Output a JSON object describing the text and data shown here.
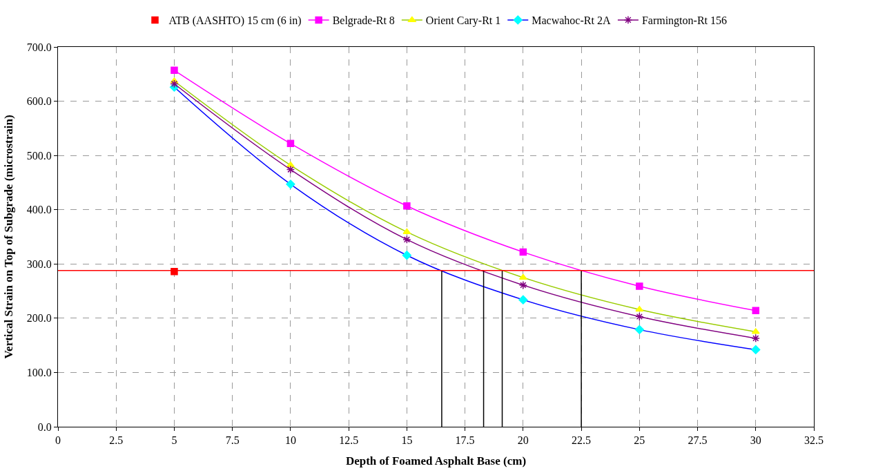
{
  "chart_data": {
    "type": "line",
    "xlabel": "Depth of Foamed Asphalt Base (cm)",
    "ylabel": "Vertical Strain on Top of Subgrade (microstrain)",
    "xlim": [
      0,
      32.5
    ],
    "xticks": [
      0,
      2.5,
      5,
      7.5,
      10,
      12.5,
      15,
      17.5,
      20,
      22.5,
      25,
      27.5,
      30,
      32.5
    ],
    "ylim": [
      0,
      700
    ],
    "yticks": [
      {
        "value": 0,
        "label": "0.0"
      },
      {
        "value": 100,
        "label": "100.0"
      },
      {
        "value": 200,
        "label": "200.0"
      },
      {
        "value": 300,
        "label": "300.0"
      },
      {
        "value": 400,
        "label": "400.0"
      },
      {
        "value": 500,
        "label": "500.0"
      },
      {
        "value": 600,
        "label": "600.0"
      },
      {
        "value": 700,
        "label": "700.0"
      }
    ],
    "grid": true,
    "legend": "top",
    "line_style": "solid",
    "ref_lines": [
      {
        "axis": "y",
        "value": 288,
        "color": "#ff0000",
        "line_style": "solid"
      }
    ],
    "series": [
      {
        "name": "ATB (AASHTO) 15 cm (6 in)",
        "type": "scatter",
        "color": "#ff0000",
        "marker": "square",
        "x": [
          5
        ],
        "values": [
          286
        ]
      },
      {
        "name": "Belgrade-Rt 8",
        "color": "#ff00ff",
        "marker": "square",
        "x": [
          5,
          10,
          15,
          20,
          25,
          30
        ],
        "values": [
          657,
          522,
          407,
          322,
          259,
          214
        ]
      },
      {
        "name": "Orient Cary-Rt 1",
        "color": "#99cc00",
        "colors": [
          "#ffff00",
          "#ffff00",
          "#ffff00",
          "#ffff00",
          "#ffff00",
          "#ffff00"
        ],
        "marker": "triangle",
        "x": [
          5,
          10,
          15,
          20,
          25,
          30
        ],
        "values": [
          637,
          482,
          359,
          275,
          216,
          175
        ]
      },
      {
        "name": "Macwahoc-Rt 2A",
        "color": "#0000ff",
        "colors": [
          "#00ffff",
          "#00ffff",
          "#00ffff",
          "#00ffff",
          "#00ffff",
          "#00ffff"
        ],
        "marker": "diamond",
        "x": [
          5,
          10,
          15,
          20,
          25,
          30
        ],
        "values": [
          626,
          447,
          316,
          234,
          179,
          142
        ]
      },
      {
        "name": "Farmington-Rt 156",
        "color": "#800080",
        "marker": "cross",
        "x": [
          5,
          10,
          15,
          20,
          25,
          30
        ],
        "values": [
          632,
          474,
          345,
          261,
          203,
          163
        ]
      },
      {
        "type": "line",
        "color": "#000000",
        "marker": "none",
        "x": [
          16.5,
          16.5
        ],
        "values": [
          0,
          288
        ]
      },
      {
        "type": "line",
        "color": "#000000",
        "marker": "none",
        "x": [
          18.3,
          18.3
        ],
        "values": [
          0,
          288
        ]
      },
      {
        "type": "line",
        "color": "#000000",
        "marker": "none",
        "x": [
          19.1,
          19.1
        ],
        "values": [
          0,
          288
        ]
      },
      {
        "type": "line",
        "color": "#000000",
        "marker": "none",
        "x": [
          22.5,
          22.5
        ],
        "values": [
          0,
          288
        ]
      }
    ]
  }
}
